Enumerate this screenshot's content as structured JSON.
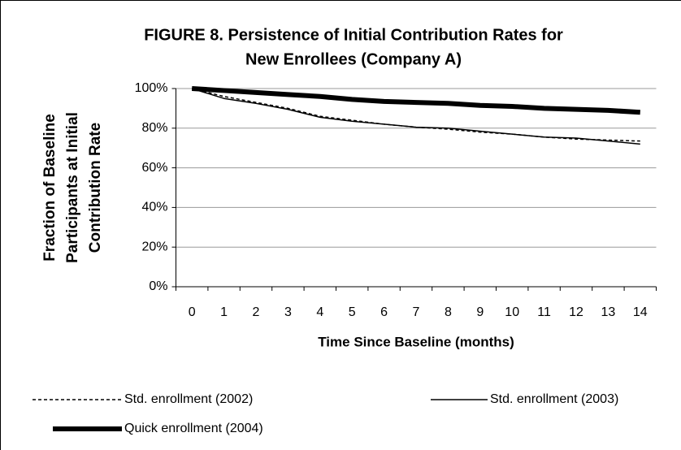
{
  "chart_data": {
    "type": "line",
    "title": [
      "FIGURE 8.  Persistence of Initial Contribution Rates for",
      "New Enrollees (Company A)"
    ],
    "y_label": [
      "Fraction of Baseline",
      "Participants at Initial",
      "Contribution Rate"
    ],
    "x_label": "Time Since Baseline (months)",
    "categories": [
      "0",
      "1",
      "2",
      "3",
      "4",
      "5",
      "6",
      "7",
      "8",
      "9",
      "10",
      "11",
      "12",
      "13",
      "14"
    ],
    "series": [
      {
        "name": "Std. enrollment (2002)",
        "color": "#000000",
        "dashed": true,
        "line_width": 1.5,
        "values": [
          100,
          96,
          93,
          90,
          86,
          84,
          82,
          80.5,
          79.5,
          78,
          77,
          75.5,
          74.5,
          74,
          73.5
        ]
      },
      {
        "name": "Std. enrollment (2003)",
        "color": "#000000",
        "dashed": false,
        "line_width": 1.5,
        "values": [
          100,
          95,
          92.5,
          89.5,
          85.5,
          83.5,
          82,
          80.5,
          80,
          78.5,
          77,
          75.5,
          75,
          73.5,
          72
        ]
      },
      {
        "name": "Quick enrollment (2004)",
        "color": "#000000",
        "dashed": false,
        "line_width": 6,
        "values": [
          100,
          99,
          98,
          97,
          96,
          94.5,
          93.5,
          93,
          92.5,
          91.5,
          91,
          90,
          89.5,
          89,
          88
        ]
      }
    ],
    "ylim": [
      0,
      100
    ],
    "yticks": [
      {
        "value": 0,
        "label": "0%"
      },
      {
        "value": 20,
        "label": "20%"
      },
      {
        "value": 40,
        "label": "40%"
      },
      {
        "value": 60,
        "label": "60%"
      },
      {
        "value": 80,
        "label": "80%"
      },
      {
        "value": 100,
        "label": "100%"
      }
    ],
    "grid": true,
    "legend": "bottom"
  }
}
